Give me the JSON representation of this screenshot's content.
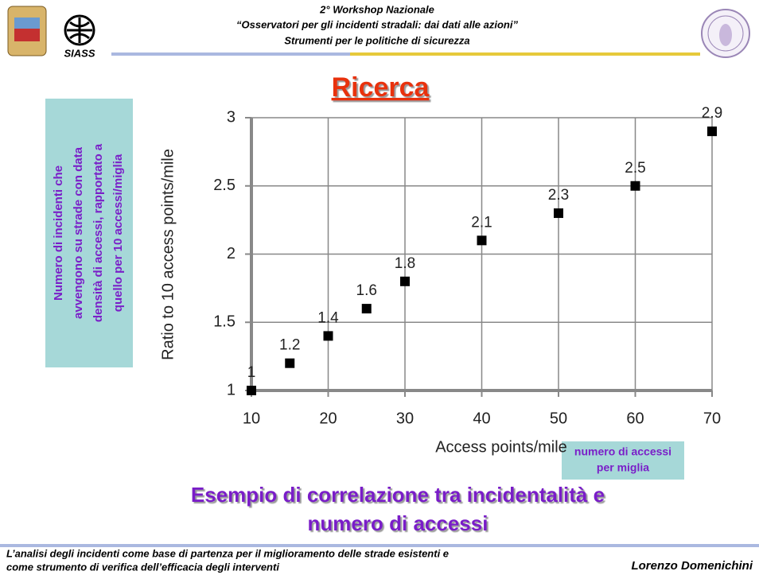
{
  "header": {
    "lines": [
      "2° Workshop Nazionale",
      "“Osservatori per gli incidenti stradali: dai dati alle azioni”",
      "Strumenti per le politiche di sicurezza"
    ]
  },
  "logo_text": "SIASS",
  "title": "Ricerca",
  "side_note": {
    "lines": [
      "Numero di incidenti che",
      "avvengono su strade con data",
      "densità di accessi, rapportato a",
      "quello per 10 accessi/miglia"
    ]
  },
  "x_note": {
    "lines": [
      "numero di accessi",
      "per miglia"
    ]
  },
  "caption": {
    "lines": [
      "Esempio di correlazione tra incidentalità e",
      "numero di accessi"
    ]
  },
  "footer": {
    "lines": [
      "L’analisi degli incidenti come base di partenza per il miglioramento delle strade esistenti e",
      "come strumento di verifica dell’efficacia degli interventi"
    ],
    "author": "Lorenzo Domenichini"
  },
  "chart_data": {
    "type": "scatter",
    "xlabel": "Access points/mile",
    "ylabel": "Ratio to 10 access points/mile",
    "x": [
      10,
      15,
      20,
      25,
      30,
      40,
      50,
      60,
      70
    ],
    "values": [
      1,
      1.2,
      1.4,
      1.6,
      1.8,
      2.1,
      2.3,
      2.5,
      2.9
    ],
    "xlim": [
      10,
      70
    ],
    "ylim": [
      1,
      3
    ],
    "xticks": [
      10,
      20,
      30,
      40,
      50,
      60,
      70
    ],
    "yticks": [
      1,
      1.5,
      2,
      2.5,
      3
    ],
    "grid": true,
    "color": "#000000"
  }
}
